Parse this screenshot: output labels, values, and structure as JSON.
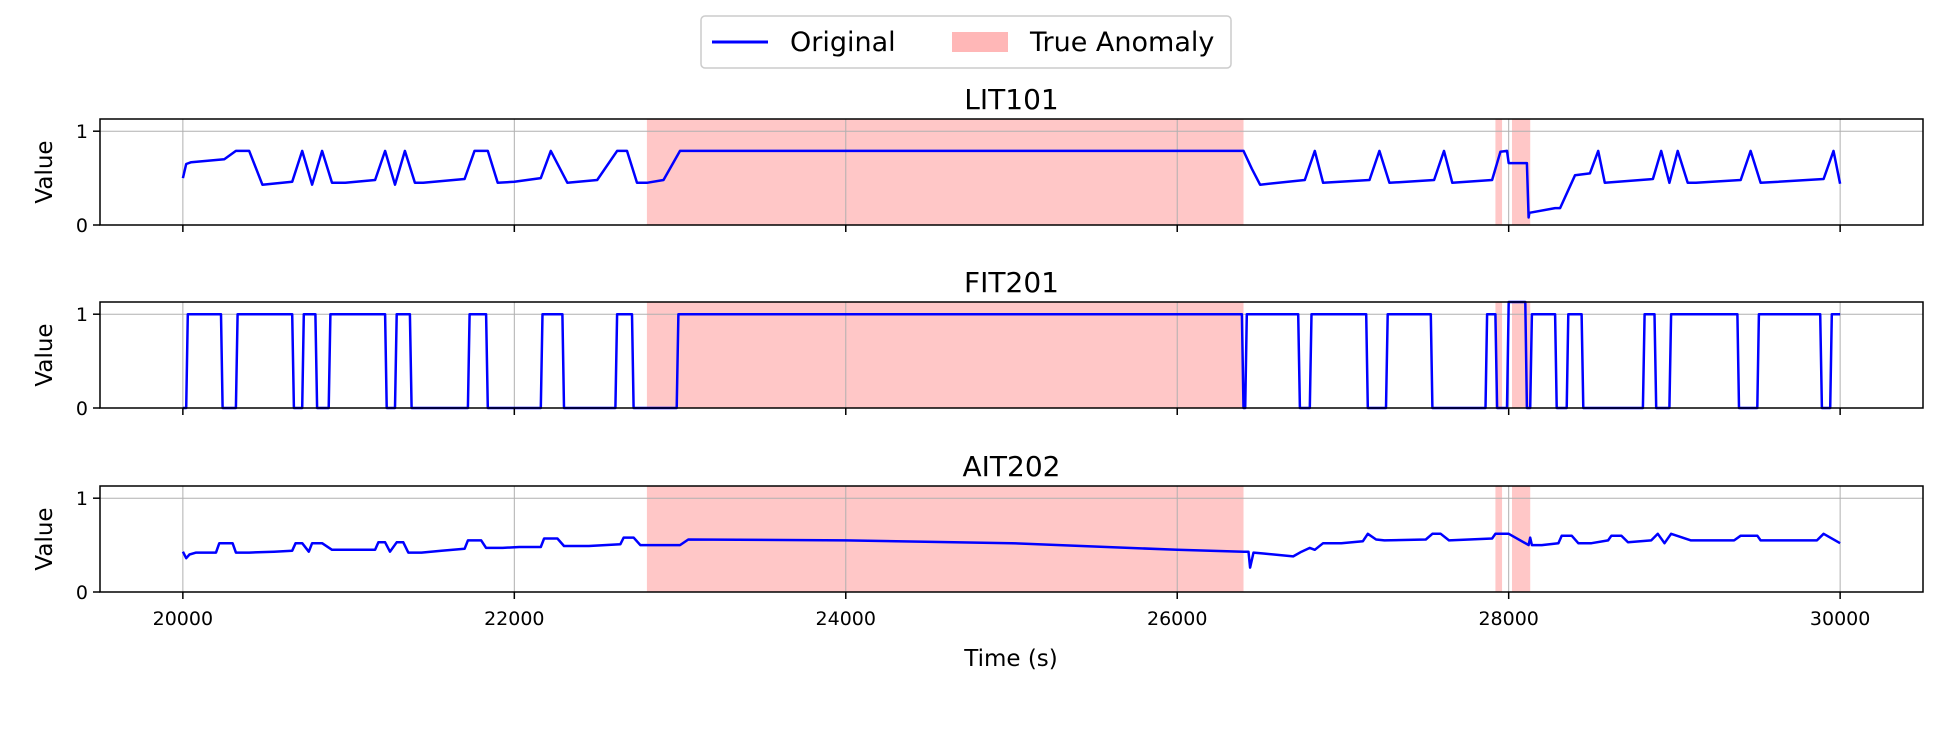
{
  "chart_data": {
    "type": "line",
    "xlabel": "Time (s)",
    "xlim": [
      19500,
      30500
    ],
    "xticks": [
      20000,
      22000,
      24000,
      26000,
      28000,
      30000
    ],
    "x_tick_labels": [
      "20000",
      "22000",
      "24000",
      "26000",
      "28000",
      "30000"
    ],
    "grid": true,
    "colors": {
      "line": "#0000ff",
      "anomaly": "#ff9999",
      "grid": "#b0b0b0"
    },
    "legend": {
      "placement": "top-center",
      "entries": [
        {
          "label": "Original",
          "kind": "line"
        },
        {
          "label": "True Anomaly",
          "kind": "patch"
        }
      ]
    },
    "anomaly_ranges": [
      [
        22800,
        26400
      ],
      [
        27920,
        27960
      ],
      [
        28020,
        28130
      ]
    ],
    "panels": [
      {
        "title": "LIT101",
        "ylabel": "Value",
        "ylim": [
          0,
          1.13
        ],
        "yticks": [
          0,
          1
        ],
        "y_tick_labels": [
          "0",
          "1"
        ],
        "x": [
          20000,
          20020,
          20050,
          20250,
          20320,
          20400,
          20480,
          20660,
          20720,
          20780,
          20840,
          20900,
          20980,
          21160,
          21220,
          21280,
          21340,
          21400,
          21450,
          21700,
          21760,
          21840,
          21900,
          22000,
          22160,
          22220,
          22320,
          22500,
          22620,
          22680,
          22740,
          22800,
          22900,
          23000,
          23050,
          24000,
          25000,
          26000,
          26400,
          26450,
          26500,
          26770,
          26830,
          26880,
          27160,
          27220,
          27280,
          27550,
          27610,
          27660,
          27900,
          27950,
          27990,
          28000,
          28110,
          28120,
          28125,
          28280,
          28310,
          28400,
          28490,
          28540,
          28580,
          28870,
          28920,
          28970,
          29020,
          29080,
          29130,
          29400,
          29460,
          29520,
          29900,
          29960,
          30000
        ],
        "values": [
          0.5,
          0.65,
          0.67,
          0.7,
          0.79,
          0.79,
          0.43,
          0.46,
          0.79,
          0.43,
          0.79,
          0.45,
          0.45,
          0.48,
          0.79,
          0.43,
          0.79,
          0.45,
          0.45,
          0.49,
          0.79,
          0.79,
          0.45,
          0.46,
          0.5,
          0.79,
          0.45,
          0.48,
          0.79,
          0.79,
          0.45,
          0.45,
          0.48,
          0.79,
          0.79,
          0.79,
          0.79,
          0.79,
          0.79,
          0.6,
          0.43,
          0.48,
          0.79,
          0.45,
          0.48,
          0.79,
          0.45,
          0.48,
          0.79,
          0.45,
          0.48,
          0.78,
          0.79,
          0.66,
          0.66,
          0.08,
          0.13,
          0.18,
          0.18,
          0.53,
          0.55,
          0.79,
          0.45,
          0.49,
          0.79,
          0.45,
          0.79,
          0.45,
          0.45,
          0.48,
          0.79,
          0.45,
          0.49,
          0.79,
          0.44
        ]
      },
      {
        "title": "FIT201",
        "ylabel": "Value",
        "ylim": [
          0,
          1.13
        ],
        "yticks": [
          0,
          1
        ],
        "y_tick_labels": [
          "0",
          "1"
        ],
        "x": [
          20000,
          20020,
          20030,
          20230,
          20240,
          20320,
          20330,
          20660,
          20670,
          20720,
          20730,
          20800,
          20810,
          20880,
          20890,
          21220,
          21230,
          21280,
          21290,
          21370,
          21380,
          21720,
          21730,
          21830,
          21840,
          22160,
          22170,
          22290,
          22300,
          22610,
          22620,
          22710,
          22720,
          22980,
          22990,
          26390,
          26400,
          26410,
          26420,
          26730,
          26740,
          26800,
          26810,
          27140,
          27150,
          27260,
          27270,
          27530,
          27540,
          27860,
          27870,
          27920,
          27930,
          27990,
          28000,
          28100,
          28110,
          28130,
          28140,
          28280,
          28290,
          28350,
          28360,
          28440,
          28450,
          28810,
          28820,
          28880,
          28890,
          28970,
          28980,
          29380,
          29390,
          29500,
          29510,
          29880,
          29890,
          29940,
          29950,
          30000
        ],
        "values": [
          0,
          0,
          1,
          1,
          0,
          0,
          1,
          1,
          0,
          0,
          1,
          1,
          0,
          0,
          1,
          1,
          0,
          0,
          1,
          1,
          0,
          0,
          1,
          1,
          0,
          0,
          1,
          1,
          0,
          0,
          1,
          1,
          0,
          0,
          1,
          1,
          0,
          0,
          1,
          1,
          0,
          0,
          1,
          1,
          0,
          0,
          1,
          1,
          0,
          0,
          1,
          1,
          0,
          0,
          1.13,
          1.13,
          0,
          0,
          1,
          1,
          0,
          0,
          1,
          1,
          0,
          0,
          1,
          1,
          0,
          0,
          1,
          1,
          0,
          0,
          1,
          1,
          0,
          0,
          1,
          1
        ],
        "values_note": "",
        "_v": [
          0,
          0,
          1,
          1,
          0,
          0,
          1,
          1,
          0,
          0,
          1,
          1,
          0,
          0,
          1,
          1,
          0,
          0,
          1,
          1,
          0,
          0,
          1,
          1,
          0,
          0,
          1,
          1,
          0,
          0,
          1,
          1,
          0,
          0,
          1,
          1,
          0,
          0,
          1,
          1,
          0,
          0,
          1,
          1,
          0,
          0,
          1,
          1,
          0,
          0,
          1,
          1,
          0,
          0,
          1.13,
          1.13,
          0,
          0,
          1,
          1,
          0,
          0,
          1,
          1,
          0,
          0,
          1,
          1,
          0,
          0,
          1,
          1,
          0,
          0,
          1,
          1,
          0,
          0,
          1,
          1
        ]
      },
      {
        "title": "AIT202",
        "ylabel": "Value",
        "ylim": [
          0,
          1.13
        ],
        "yticks": [
          0,
          1
        ],
        "y_tick_labels": [
          "0",
          "1"
        ],
        "x": [
          20000,
          20020,
          20040,
          20080,
          20200,
          20220,
          20300,
          20320,
          20400,
          20550,
          20660,
          20680,
          20720,
          20760,
          20780,
          20840,
          20900,
          21000,
          21160,
          21180,
          21220,
          21250,
          21290,
          21330,
          21360,
          21440,
          21560,
          21700,
          21720,
          21800,
          21830,
          21930,
          22030,
          22160,
          22180,
          22260,
          22300,
          22450,
          22640,
          22660,
          22720,
          22760,
          22800,
          23000,
          23050,
          24000,
          25000,
          26000,
          26400,
          26430,
          26440,
          26460,
          26520,
          26700,
          26750,
          26800,
          26830,
          26880,
          26990,
          27120,
          27150,
          27200,
          27250,
          27500,
          27540,
          27590,
          27640,
          27900,
          27920,
          27990,
          28000,
          28120,
          28130,
          28140,
          28200,
          28300,
          28320,
          28380,
          28420,
          28500,
          28600,
          28620,
          28680,
          28720,
          28860,
          28900,
          28940,
          28980,
          29100,
          29360,
          29400,
          29500,
          29520,
          29860,
          29900,
          30000
        ],
        "values": [
          0.43,
          0.36,
          0.4,
          0.42,
          0.42,
          0.52,
          0.52,
          0.42,
          0.42,
          0.43,
          0.44,
          0.52,
          0.52,
          0.43,
          0.52,
          0.52,
          0.45,
          0.45,
          0.45,
          0.53,
          0.53,
          0.43,
          0.53,
          0.53,
          0.42,
          0.42,
          0.44,
          0.46,
          0.55,
          0.55,
          0.47,
          0.47,
          0.48,
          0.48,
          0.57,
          0.57,
          0.49,
          0.49,
          0.51,
          0.58,
          0.58,
          0.5,
          0.5,
          0.5,
          0.56,
          0.55,
          0.52,
          0.45,
          0.43,
          0.43,
          0.26,
          0.42,
          0.41,
          0.38,
          0.43,
          0.47,
          0.45,
          0.52,
          0.52,
          0.54,
          0.62,
          0.56,
          0.55,
          0.56,
          0.62,
          0.62,
          0.55,
          0.57,
          0.62,
          0.62,
          0.62,
          0.5,
          0.58,
          0.5,
          0.5,
          0.52,
          0.6,
          0.6,
          0.52,
          0.52,
          0.55,
          0.6,
          0.6,
          0.53,
          0.55,
          0.62,
          0.52,
          0.62,
          0.55,
          0.55,
          0.6,
          0.6,
          0.55,
          0.55,
          0.62,
          0.52
        ]
      }
    ]
  }
}
